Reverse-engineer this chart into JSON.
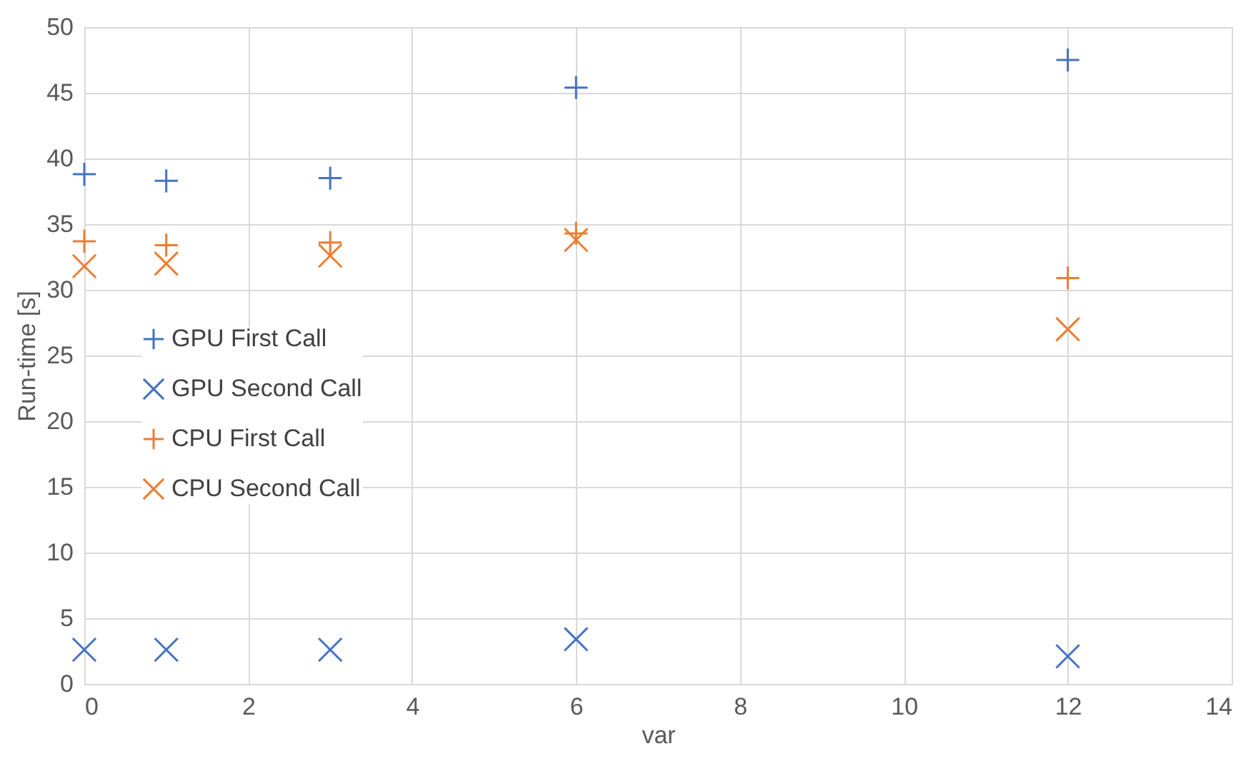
{
  "chart_data": {
    "type": "scatter",
    "xlabel": "var",
    "ylabel": "Run-time [s]",
    "xlim": [
      0,
      14
    ],
    "xticks": [
      0,
      2,
      4,
      6,
      8,
      10,
      12,
      14
    ],
    "ylim": [
      0,
      50
    ],
    "yticks": [
      0,
      5,
      10,
      15,
      20,
      25,
      30,
      35,
      40,
      45,
      50
    ],
    "grid": true,
    "legend": "left",
    "series": [
      {
        "name": "GPU First Call",
        "color": "#4472c4",
        "marker": "cross",
        "x": [
          0,
          1,
          3,
          6,
          12
        ],
        "values": [
          38.8,
          38.3,
          38.5,
          45.4,
          47.5
        ]
      },
      {
        "name": "GPU Second Call",
        "color": "#4472c4",
        "marker": "x",
        "x": [
          0,
          1,
          3,
          6,
          12
        ],
        "values": [
          2.6,
          2.6,
          2.6,
          3.4,
          2.1
        ]
      },
      {
        "name": "CPU First Call",
        "color": "#ed7d31",
        "marker": "cross",
        "x": [
          0,
          1,
          3,
          6,
          12
        ],
        "values": [
          33.7,
          33.4,
          33.6,
          34.3,
          30.9
        ]
      },
      {
        "name": "CPU Second Call",
        "color": "#ed7d31",
        "marker": "x",
        "x": [
          0,
          1,
          3,
          6,
          12
        ],
        "values": [
          31.8,
          32.0,
          32.6,
          33.8,
          27.0
        ]
      }
    ]
  }
}
